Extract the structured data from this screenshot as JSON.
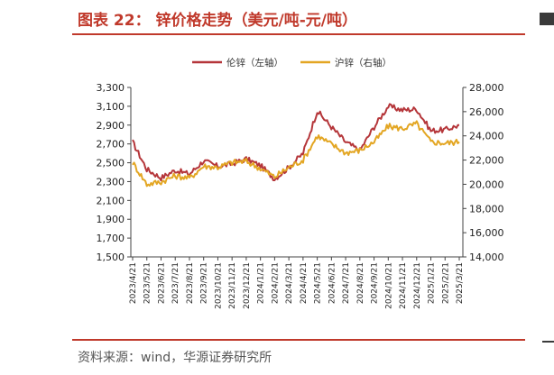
{
  "header": {
    "title": "图表 22：  锌价格走势（美元/吨-元/吨）"
  },
  "footer": {
    "source": "资料来源：wind，华源证券研究所"
  },
  "colors": {
    "accent": "#c0392b",
    "series_lme": "#b5363a",
    "series_shfe": "#e3a623"
  },
  "chart_data": {
    "type": "line",
    "x": [
      "2023/4/21",
      "2023/5/21",
      "2023/6/21",
      "2023/7/21",
      "2023/8/21",
      "2023/9/21",
      "2023/10/21",
      "2023/11/21",
      "2023/12/21",
      "2024/1/21",
      "2024/2/21",
      "2024/3/21",
      "2024/4/21",
      "2024/5/21",
      "2024/6/21",
      "2024/7/21",
      "2024/8/21",
      "2024/9/21",
      "2024/10/21",
      "2024/11/21",
      "2024/12/21",
      "2025/1/21",
      "2025/2/21",
      "2025/3/21"
    ],
    "series": [
      {
        "name": "伦锌（左轴）",
        "axis": "left",
        "values": [
          2720,
          2430,
          2340,
          2420,
          2380,
          2520,
          2460,
          2490,
          2540,
          2470,
          2330,
          2450,
          2600,
          3050,
          2880,
          2720,
          2630,
          2880,
          3100,
          3060,
          3070,
          2840,
          2850,
          2900
        ]
      },
      {
        "name": "沪锌（右轴）",
        "axis": "right",
        "values": [
          21800,
          20000,
          20200,
          20700,
          20500,
          21500,
          21400,
          21800,
          21900,
          21300,
          20600,
          21400,
          22000,
          24000,
          23300,
          22600,
          22800,
          23500,
          24800,
          24600,
          25000,
          23500,
          23400,
          23500
        ]
      }
    ],
    "y_left": {
      "ylim": [
        1500,
        3300
      ],
      "ticks": [
        "1,500",
        "1,700",
        "1,900",
        "2,100",
        "2,300",
        "2,500",
        "2,700",
        "2,900",
        "3,100",
        "3,300"
      ]
    },
    "y_right": {
      "ylim": [
        14000,
        28000
      ],
      "ticks": [
        "14,000",
        "16,000",
        "18,000",
        "20,000",
        "22,000",
        "24,000",
        "26,000",
        "28,000"
      ]
    },
    "grid": false,
    "legend_position": "top-center"
  }
}
